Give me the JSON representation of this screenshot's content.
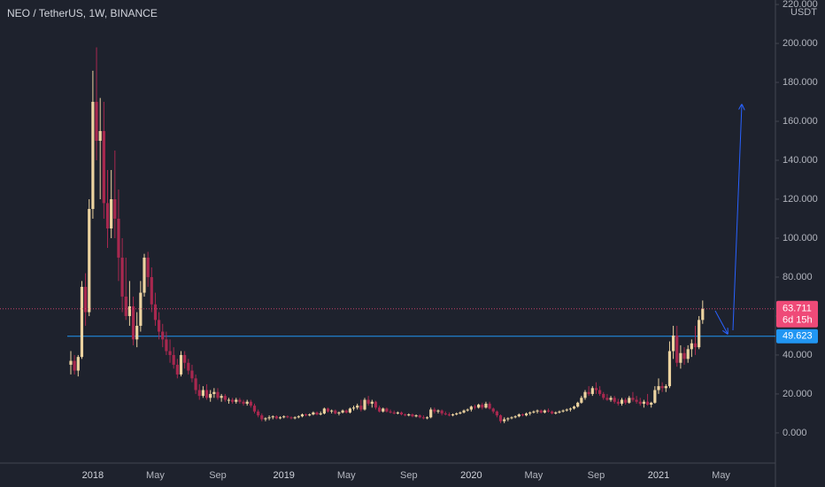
{
  "chart_data": {
    "type": "candlestick",
    "title": "NEO / TetherUS, 1W, BINANCE",
    "unit": "USDT",
    "countdown": "6d 15h",
    "background": "#1e222d",
    "up_color": "#ecd3a0",
    "down_color": "#a8284f",
    "last_color": "#ef4a78",
    "hline": {
      "value": 49.623,
      "color": "#2196f3"
    },
    "ylim": [
      -15.5,
      222.3
    ],
    "yticks": [
      {
        "value": 0,
        "label": "0.000"
      },
      {
        "value": 20,
        "label": "20.000"
      },
      {
        "value": 40,
        "label": "40.000"
      },
      {
        "value": 60,
        "label": "60.000"
      },
      {
        "value": 80,
        "label": "80.000"
      },
      {
        "value": 100,
        "label": "100.000"
      },
      {
        "value": 120,
        "label": "120.000"
      },
      {
        "value": 140,
        "label": "140.000"
      },
      {
        "value": 160,
        "label": "160.000"
      },
      {
        "value": 180,
        "label": "180.000"
      },
      {
        "value": 200,
        "label": "200.000"
      },
      {
        "value": 220,
        "label": "220.000"
      }
    ],
    "categories": [
      null,
      null,
      null,
      null,
      null,
      null,
      "2018",
      null,
      null,
      null,
      null,
      null,
      null,
      null,
      null,
      null,
      null,
      null,
      null,
      null,
      null,
      null,
      null,
      "May",
      null,
      null,
      null,
      null,
      null,
      null,
      null,
      null,
      null,
      null,
      null,
      null,
      null,
      null,
      null,
      null,
      "Sep",
      null,
      null,
      null,
      null,
      null,
      null,
      null,
      null,
      null,
      null,
      null,
      null,
      null,
      null,
      null,
      null,
      null,
      "2019",
      null,
      null,
      null,
      null,
      null,
      null,
      null,
      null,
      null,
      null,
      null,
      null,
      null,
      null,
      null,
      null,
      "May",
      null,
      null,
      null,
      null,
      null,
      null,
      null,
      null,
      null,
      null,
      null,
      null,
      null,
      null,
      null,
      null,
      "Sep",
      null,
      null,
      null,
      null,
      null,
      null,
      null,
      null,
      null,
      null,
      null,
      null,
      null,
      null,
      null,
      null,
      "2020",
      null,
      null,
      null,
      null,
      null,
      null,
      null,
      null,
      null,
      null,
      null,
      null,
      null,
      null,
      null,
      null,
      "May",
      null,
      null,
      null,
      null,
      null,
      null,
      null,
      null,
      null,
      null,
      null,
      null,
      null,
      null,
      null,
      null,
      "Sep",
      null,
      null,
      null,
      null,
      null,
      null,
      null,
      null,
      null,
      null,
      null,
      null,
      null,
      null,
      null,
      null,
      "2021",
      null,
      null,
      null,
      null,
      null,
      null,
      null,
      null,
      null,
      null,
      null,
      null,
      null,
      null,
      null,
      null,
      "May"
    ],
    "open": [
      35,
      37,
      32,
      39,
      75,
      62,
      115,
      170,
      150,
      155,
      118,
      105,
      120,
      110,
      90,
      70,
      60,
      65,
      48,
      55,
      72,
      90,
      80,
      66,
      58,
      52,
      48,
      42,
      40,
      35,
      30,
      40,
      36,
      32,
      28,
      22,
      19,
      22,
      18,
      20,
      21,
      18,
      19,
      17,
      17,
      16,
      17,
      16,
      15,
      16,
      14,
      11,
      9,
      7,
      7.5,
      8,
      8.5,
      7.5,
      8,
      8.5,
      8,
      7.5,
      8,
      8.5,
      9.5,
      9,
      9.5,
      10.5,
      9.5,
      10,
      12.5,
      11,
      11.5,
      10,
      10.5,
      11.5,
      10.5,
      12.5,
      13,
      14,
      12,
      17,
      15,
      16,
      13,
      11,
      12.5,
      11,
      10.5,
      10,
      10.5,
      9.5,
      9,
      9.5,
      8.5,
      9,
      8,
      7.5,
      8,
      12,
      11,
      11.5,
      10,
      9.5,
      9,
      9.5,
      10,
      10.5,
      11.5,
      12,
      13.5,
      13,
      14.5,
      13,
      15,
      12.5,
      11,
      9,
      6,
      7,
      7.5,
      8,
      8.5,
      9.5,
      9,
      10,
      10.5,
      11,
      11.5,
      10.5,
      11.5,
      11,
      10,
      10.5,
      11,
      11.5,
      12,
      12.5,
      13.5,
      15.5,
      18,
      21,
      20,
      23,
      22,
      20,
      18,
      17,
      18,
      16,
      15,
      17,
      15.5,
      18,
      17,
      16,
      15,
      16,
      14.5,
      15.5,
      22,
      24,
      23,
      24,
      42,
      50,
      36,
      41,
      38,
      43,
      46,
      44,
      58,
      null,
      null,
      null,
      null,
      null
    ],
    "high": [
      42,
      40,
      40,
      78,
      82,
      120,
      186,
      198,
      172,
      170,
      135,
      135,
      145,
      125,
      100,
      90,
      78,
      70,
      62,
      78,
      92,
      93,
      85,
      72,
      62,
      56,
      52,
      48,
      44,
      38,
      42,
      42,
      38,
      35,
      30,
      25,
      24,
      25,
      22,
      23,
      23,
      20,
      20,
      18,
      18,
      18,
      18,
      17,
      17,
      17,
      15,
      12,
      10,
      8,
      9,
      9,
      9,
      8.5,
      9,
      9,
      8.5,
      8.5,
      9,
      10,
      10,
      10,
      11,
      11,
      11,
      13,
      13,
      12,
      12,
      11,
      12,
      12,
      13,
      14,
      15,
      17,
      18,
      19,
      17,
      16.5,
      14,
      13,
      13,
      12,
      11.5,
      11,
      11,
      10,
      10,
      10,
      9.5,
      9.5,
      9,
      8.5,
      13,
      13,
      12,
      12,
      11,
      10.5,
      10,
      10.5,
      11,
      12,
      12.5,
      14,
      14.5,
      15,
      15.5,
      16,
      16,
      13,
      11.5,
      9.5,
      8,
      8,
      8.5,
      9,
      10,
      10,
      10.5,
      11,
      11.5,
      12,
      12,
      12,
      12.5,
      11.5,
      11,
      11.5,
      12,
      12.5,
      13,
      14,
      16,
      19,
      22,
      24,
      24,
      26,
      24,
      21,
      20,
      19,
      19,
      17.5,
      18,
      18,
      19,
      21,
      19,
      18,
      17,
      20,
      16,
      24,
      28,
      26,
      25,
      47,
      55,
      55,
      45,
      44,
      45,
      48,
      55,
      60,
      68,
      null,
      null,
      null,
      null,
      null
    ],
    "low": [
      30,
      30,
      29,
      38,
      55,
      60,
      110,
      140,
      120,
      110,
      95,
      100,
      100,
      78,
      62,
      58,
      55,
      45,
      44,
      52,
      70,
      75,
      62,
      55,
      48,
      44,
      40,
      36,
      33,
      28,
      29,
      33,
      30,
      26,
      20,
      17,
      18,
      17,
      16,
      18,
      17,
      16,
      16,
      15,
      15,
      15,
      15,
      14,
      14,
      13,
      10,
      8,
      6,
      6,
      6.5,
      7,
      7,
      7,
      7.5,
      7.5,
      7,
      7,
      7.5,
      8,
      8.5,
      8.5,
      9,
      9,
      9,
      9.5,
      10.5,
      10,
      9.5,
      9,
      10,
      10,
      10,
      11.5,
      12,
      11,
      11.5,
      14,
      13,
      12,
      10.5,
      10.5,
      10.5,
      10,
      9.5,
      9.5,
      9,
      8.5,
      8.5,
      8,
      8,
      7.5,
      7,
      7,
      7.5,
      10,
      10,
      9,
      9,
      8.5,
      8.5,
      9,
      9.5,
      10,
      11,
      11,
      12,
      12.5,
      12,
      12.5,
      12,
      10,
      8,
      5,
      5,
      6,
      7,
      7.5,
      8,
      8.5,
      8.5,
      9,
      10,
      10,
      10,
      10,
      10.5,
      9.5,
      9.5,
      10,
      10.5,
      11,
      11,
      12,
      13,
      15,
      17,
      19,
      19,
      20,
      19,
      17,
      16.5,
      16,
      15,
      14,
      14,
      14.5,
      15,
      16,
      15,
      14,
      13,
      14,
      13,
      15,
      20,
      21,
      21,
      23,
      38,
      34,
      33,
      35,
      36,
      39,
      40,
      43,
      56,
      null,
      null,
      null,
      null,
      null
    ],
    "close": [
      37,
      32,
      39,
      75,
      62,
      115,
      170,
      150,
      155,
      118,
      105,
      120,
      110,
      90,
      70,
      60,
      65,
      48,
      55,
      72,
      90,
      80,
      66,
      58,
      52,
      48,
      42,
      40,
      35,
      30,
      40,
      36,
      32,
      28,
      22,
      19,
      22,
      18,
      20,
      21,
      18,
      19,
      17,
      17,
      16,
      17,
      16,
      15,
      16,
      14,
      11,
      9,
      7,
      7.5,
      8,
      8.5,
      7.5,
      8,
      8.5,
      8,
      7.5,
      8,
      8.5,
      9.5,
      9,
      9.5,
      10.5,
      9.5,
      10,
      12.5,
      11,
      11.5,
      10,
      10.5,
      11.5,
      10.5,
      12.5,
      13,
      14,
      12,
      17,
      15,
      16,
      13,
      11,
      12.5,
      11,
      10.5,
      10,
      10.5,
      9.5,
      9,
      9.5,
      8.5,
      9,
      8,
      7.5,
      8,
      12,
      11,
      11.5,
      10,
      9.5,
      9,
      9.5,
      10,
      10.5,
      11.5,
      12,
      13.5,
      13,
      14.5,
      13,
      15,
      12.5,
      11,
      9,
      6,
      7,
      7.5,
      8,
      8.5,
      9.5,
      9,
      10,
      10.5,
      11,
      11.5,
      10.5,
      11.5,
      11,
      10,
      10.5,
      11,
      11.5,
      12,
      12.5,
      13.5,
      15.5,
      18,
      21,
      20,
      23,
      22,
      20,
      18,
      17,
      18,
      16,
      15,
      17,
      15.5,
      18,
      17,
      16,
      15,
      16,
      14.5,
      15.5,
      22,
      24,
      23,
      24,
      42,
      50,
      36,
      41,
      38,
      43,
      46,
      44,
      58,
      63.711,
      null,
      null,
      null,
      null,
      null
    ]
  }
}
